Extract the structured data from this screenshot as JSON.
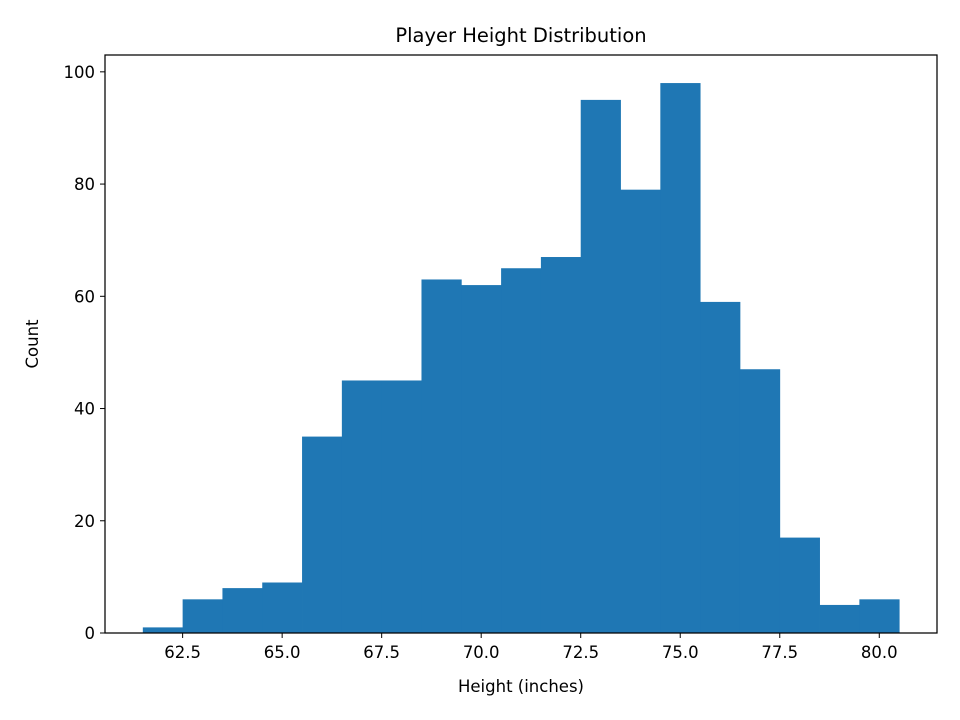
{
  "chart_data": {
    "type": "bar",
    "title": "Player Height Distribution",
    "xlabel": "Height (inches)",
    "ylabel": "Count",
    "bin_edges": [
      61.5,
      62.5,
      63.5,
      64.5,
      65.5,
      66.5,
      67.5,
      68.5,
      69.5,
      70.5,
      71.5,
      72.5,
      73.5,
      74.5,
      75.5,
      76.5,
      77.5,
      78.5,
      79.5,
      80.5
    ],
    "values": [
      1,
      6,
      8,
      9,
      35,
      45,
      45,
      63,
      62,
      65,
      67,
      95,
      79,
      98,
      59,
      47,
      17,
      5,
      6
    ],
    "xlim": [
      60.55,
      81.45
    ],
    "ylim": [
      0,
      103
    ],
    "xticks": [
      62.5,
      65.0,
      67.5,
      70.0,
      72.5,
      75.0,
      77.5,
      80.0
    ],
    "xtick_labels": [
      "62.5",
      "65.0",
      "67.5",
      "70.0",
      "72.5",
      "75.0",
      "77.5",
      "80.0"
    ],
    "yticks": [
      0,
      20,
      40,
      60,
      80,
      100
    ],
    "ytick_labels": [
      "0",
      "20",
      "40",
      "60",
      "80",
      "100"
    ],
    "bar_color": "#1f77b4",
    "grid": false,
    "legend": "none"
  }
}
